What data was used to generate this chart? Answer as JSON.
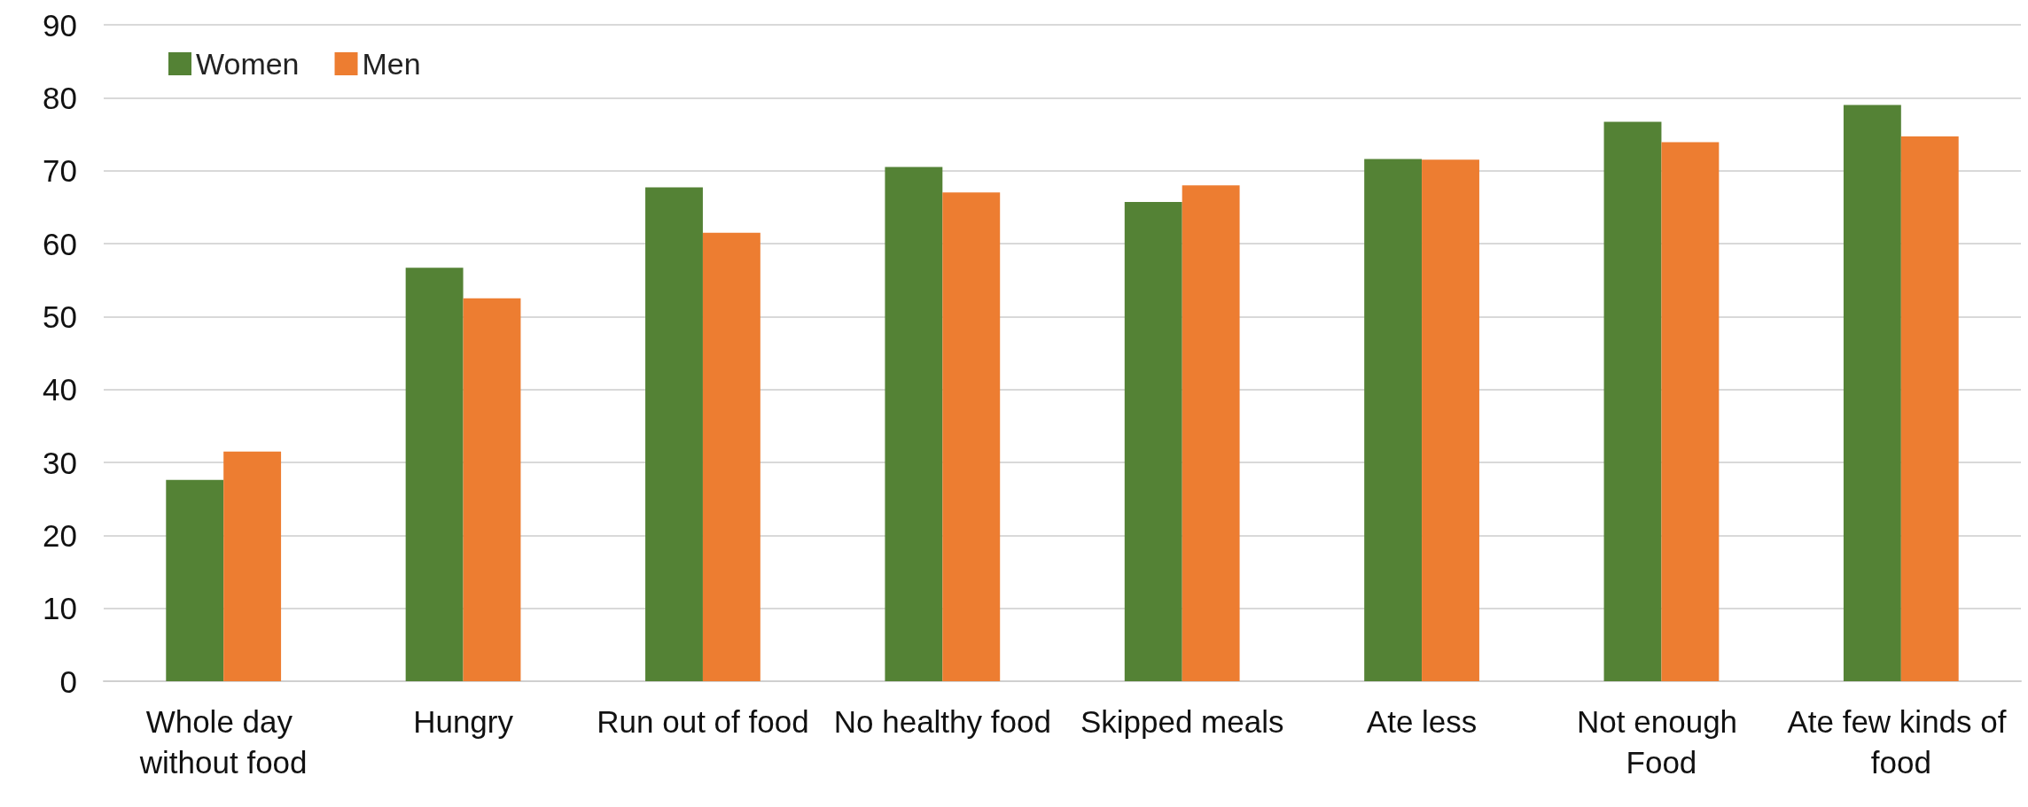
{
  "chart_data": {
    "type": "bar",
    "categories": [
      "Whole day without food",
      "Hungry",
      "Run out of food",
      "No healthy food",
      "Skipped meals",
      "Ate less",
      "Not enough Food",
      "Ate few kinds of food"
    ],
    "series": [
      {
        "name": "Women",
        "color": "#548235",
        "values": [
          27.6,
          56.7,
          67.7,
          70.5,
          65.7,
          71.6,
          76.7,
          79.0
        ]
      },
      {
        "name": "Men",
        "color": "#ed7d31",
        "values": [
          31.5,
          52.5,
          61.5,
          67.0,
          68.0,
          71.5,
          73.9,
          74.7
        ]
      }
    ],
    "ylim": [
      0,
      90
    ],
    "yticks": [
      0,
      10,
      20,
      30,
      40,
      50,
      60,
      70,
      80,
      90
    ],
    "grid": "y",
    "legend": "top left"
  }
}
